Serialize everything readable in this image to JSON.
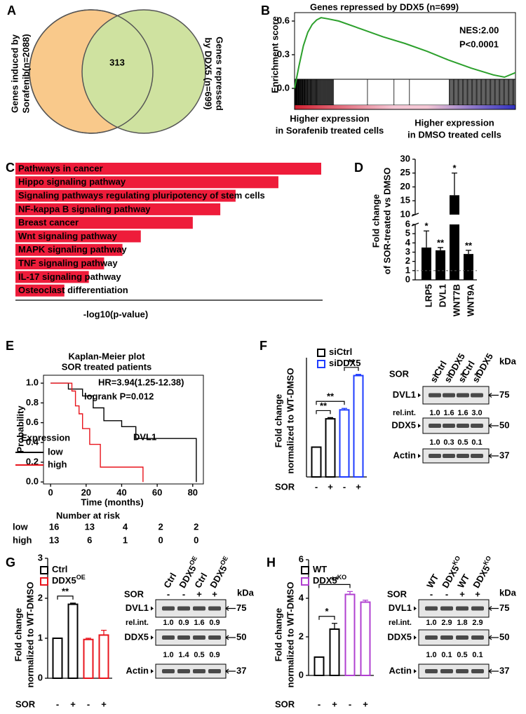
{
  "panel_labels": [
    "A",
    "B",
    "C",
    "D",
    "E",
    "F",
    "G",
    "H"
  ],
  "venn": {
    "left": [
      "Genes induced by",
      "Sorafenib(n=2088)"
    ],
    "right": [
      "Genes repressed",
      "by DDX5 (n=699)"
    ],
    "overlap": 313,
    "colors": [
      "#f9c98b",
      "#cfe2a0"
    ]
  },
  "gsea": {
    "title": "Genes repressed by DDX5 (n=699)",
    "ylabel": "Enrichment score",
    "ylim": [
      -0.15,
      0.65
    ],
    "yticks": [
      {
        "value": 0,
        "label": "0.0"
      },
      0.3,
      0.6
    ],
    "xlim": [
      0,
      100
    ],
    "x": [
      0,
      2,
      4,
      6,
      8,
      10,
      12,
      15,
      20,
      30,
      40,
      50,
      60,
      70,
      80,
      90,
      95,
      100
    ],
    "values": [
      0,
      0.2,
      0.38,
      0.5,
      0.57,
      0.61,
      0.63,
      0.62,
      0.6,
      0.53,
      0.46,
      0.4,
      0.33,
      0.25,
      0.18,
      0.12,
      0.1,
      0.14
    ],
    "color": "#2ca02c",
    "nes": "NES:2.00",
    "p": "P<0.0001",
    "left": [
      "Higher expression",
      "in Sorafenib treated cells"
    ],
    "right": [
      "Higher expression",
      "in DMSO treated cells"
    ]
  },
  "kegg": {
    "categories": [
      "Pathways in cancer",
      "Hippo signaling pathway",
      "Signaling pathways regulating pluripotency of stem cells",
      "NF-kappa B signaling pathway",
      "Breast cancer",
      "Wnt signaling pathway",
      "MAPK signaling pathway",
      "TNF signaling pathway",
      "IL-17 signaling pathway",
      "Osteoclast differentiation"
    ],
    "values": [
      10,
      8.6,
      7.2,
      6.7,
      5.8,
      4.1,
      3.5,
      2.9,
      2.4,
      1.6
    ],
    "color": "#ee1c3a",
    "xlabel": "-log10(p-value)"
  },
  "wnt": {
    "ylabel": [
      "Fold change",
      "of SOR-treated vs DMSO"
    ],
    "categories": [
      "LRP5",
      "DVL1",
      "WNT7B",
      "WNT9A"
    ],
    "values": [
      3.5,
      3.2,
      17,
      2.8
    ],
    "errors": [
      1.8,
      0.3,
      8,
      0.4
    ],
    "stars": [
      "*",
      "**",
      "*",
      "**"
    ],
    "ylim_lower": [
      0,
      6
    ],
    "yticks_lower": [
      0,
      1,
      2,
      3,
      4,
      5,
      6
    ],
    "ylim_upper": [
      10,
      30
    ],
    "yticks_upper": [
      10,
      15,
      20,
      25,
      30
    ],
    "reference": 1,
    "color": "#000000"
  },
  "km": {
    "title": [
      "Kaplan-Meier plot",
      "SOR treated patients"
    ],
    "hr": "HR=3.94(1.25-12.38)",
    "logrank": "logrank P=0.012",
    "gene": "DVL1",
    "legend_title": "Expression",
    "xlabel": "Time (months)",
    "ylabel": "Probability",
    "xlim": [
      -4,
      86
    ],
    "xticks": [
      0,
      20,
      40,
      60,
      80
    ],
    "ylim": [
      -0.02,
      1.08
    ],
    "yticks": [
      {
        "value": 0,
        "label": "0.0"
      },
      0.2,
      0.4,
      0.6,
      0.8,
      {
        "value": 1,
        "label": "1.0"
      }
    ],
    "series": [
      {
        "name": "low",
        "color": "#000000",
        "x": [
          0,
          10,
          10,
          18,
          18,
          24,
          24,
          30,
          30,
          40,
          40,
          48,
          48,
          82,
          82
        ],
        "values": [
          1,
          1,
          0.94,
          0.94,
          0.87,
          0.87,
          0.75,
          0.75,
          0.62,
          0.62,
          0.56,
          0.56,
          0.44,
          0.44,
          0
        ]
      },
      {
        "name": "high",
        "color": "#e8141c",
        "x": [
          0,
          12,
          12,
          14,
          14,
          16,
          16,
          18,
          18,
          22,
          22,
          28,
          28,
          52,
          52
        ],
        "values": [
          1,
          1,
          0.92,
          0.92,
          0.77,
          0.77,
          0.69,
          0.69,
          0.54,
          0.54,
          0.38,
          0.38,
          0.15,
          0.15,
          0
        ]
      }
    ],
    "risk_title": "Number at risk",
    "risk": [
      [
        16,
        13,
        4,
        2,
        2
      ],
      [
        13,
        6,
        1,
        0,
        0
      ]
    ]
  },
  "f": {
    "ylabel": [
      "Fold change",
      "normalized to WT-DMSO"
    ],
    "ylim": [
      0,
      4
    ],
    "treatment_label": "SOR",
    "treatment": [
      "-",
      "+",
      "-",
      "+"
    ],
    "series": [
      {
        "name": "siCtrl",
        "color": "#000000",
        "values": [
          1,
          1.95
        ],
        "errors": [
          0,
          0.04
        ]
      },
      {
        "name": "siDDX5",
        "color": "#1f3cff",
        "values": [
          2.25,
          3.4
        ],
        "errors": [
          0.05,
          0.04
        ]
      }
    ],
    "brackets": [
      {
        "from": 0,
        "to": 1,
        "label": "**"
      },
      {
        "from": 0,
        "to": 2,
        "label": "**"
      },
      {
        "from": 2,
        "to": 3,
        "label": "**"
      }
    ],
    "blot": {
      "lanes": [
        {
          "text": "siCtrl"
        },
        {
          "text": "siDDX5"
        },
        {
          "text": "siCtrl"
        },
        {
          "text": "siDDX5"
        }
      ],
      "treatment": [
        "-",
        "-",
        "+",
        "+"
      ],
      "unit": "kDa",
      "rows": [
        {
          "name": "DVL1",
          "rel_label": "rel.int.",
          "rel": [
            "1.0",
            "1.6",
            "1.6",
            "3.0"
          ],
          "marker": 75
        },
        {
          "name": "DDX5",
          "rel": [
            "1.0",
            "0.3",
            "0.5",
            "0.1"
          ],
          "marker": 50
        },
        {
          "name": "Actin",
          "marker": 37
        }
      ]
    }
  },
  "g": {
    "ylabel": [
      "Fold change",
      "normalized to WT-DMSO"
    ],
    "ylim": [
      0,
      3
    ],
    "yticks": [
      0,
      1,
      2,
      3
    ],
    "treatment_label": "SOR",
    "treatment": [
      "-",
      "+",
      "-",
      "+"
    ],
    "series": [
      {
        "name": "Ctrl",
        "color": "#000000",
        "values": [
          1,
          1.85
        ],
        "errors": [
          0,
          0.03
        ]
      },
      {
        "name": "DDX5",
        "sup": "OE",
        "color": "#e8141c",
        "values": [
          0.97,
          1.08
        ],
        "errors": [
          0.03,
          0.12
        ]
      }
    ],
    "brackets": [
      {
        "from": 0,
        "to": 1,
        "label": "**"
      }
    ],
    "blot": {
      "lanes": [
        {
          "text": "Ctrl"
        },
        {
          "text": "DDX5",
          "sup": "OE"
        },
        {
          "text": "Ctrl"
        },
        {
          "text": "DDX5",
          "sup": "OE"
        }
      ],
      "treatment": [
        "-",
        "-",
        "+",
        "+"
      ],
      "unit": "kDa",
      "rows": [
        {
          "name": "DVL1",
          "rel_label": "rel.int.",
          "rel": [
            "1.0",
            "0.9",
            "1.6",
            "0.9"
          ],
          "marker": 75
        },
        {
          "name": "DDX5",
          "rel": [
            "1.0",
            "1.4",
            "0.5",
            "0.9"
          ],
          "marker": 50
        },
        {
          "name": "Actin",
          "marker": 37
        }
      ]
    }
  },
  "h": {
    "ylabel": [
      "Fold change",
      "normalized to WT-DMSO"
    ],
    "ylim": [
      0,
      6
    ],
    "yticks": [
      0,
      2,
      4,
      6
    ],
    "treatment_label": "SOR",
    "treatment": [
      "-",
      "+",
      "-",
      "+"
    ],
    "series": [
      {
        "name": "WT",
        "color": "#000000",
        "values": [
          0.95,
          2.4
        ],
        "errors": [
          0,
          0.3
        ]
      },
      {
        "name": "DDX5",
        "sup": "KO",
        "color": "#b040d0",
        "values": [
          4.2,
          3.8
        ],
        "errors": [
          0.15,
          0.1
        ]
      }
    ],
    "brackets": [
      {
        "from": 0,
        "to": 1,
        "label": "*"
      },
      {
        "from": 0,
        "to": 2,
        "label": "**"
      }
    ],
    "blot": {
      "lanes": [
        {
          "text": "WT"
        },
        {
          "text": "DDX5",
          "sup": "KO"
        },
        {
          "text": "WT"
        },
        {
          "text": "DDX5",
          "sup": "KO"
        }
      ],
      "treatment": [
        "-",
        "-",
        "+",
        "+"
      ],
      "unit": "kDa",
      "rows": [
        {
          "name": "DVL1",
          "rel_label": "rel.int.",
          "rel": [
            "1.0",
            "2.9",
            "1.8",
            "2.9"
          ],
          "marker": 75
        },
        {
          "name": "DDX5",
          "rel": [
            "1.0",
            "0.1",
            "0.5",
            "0.1"
          ],
          "marker": 50
        },
        {
          "name": "Actin",
          "marker": 37
        }
      ]
    }
  }
}
